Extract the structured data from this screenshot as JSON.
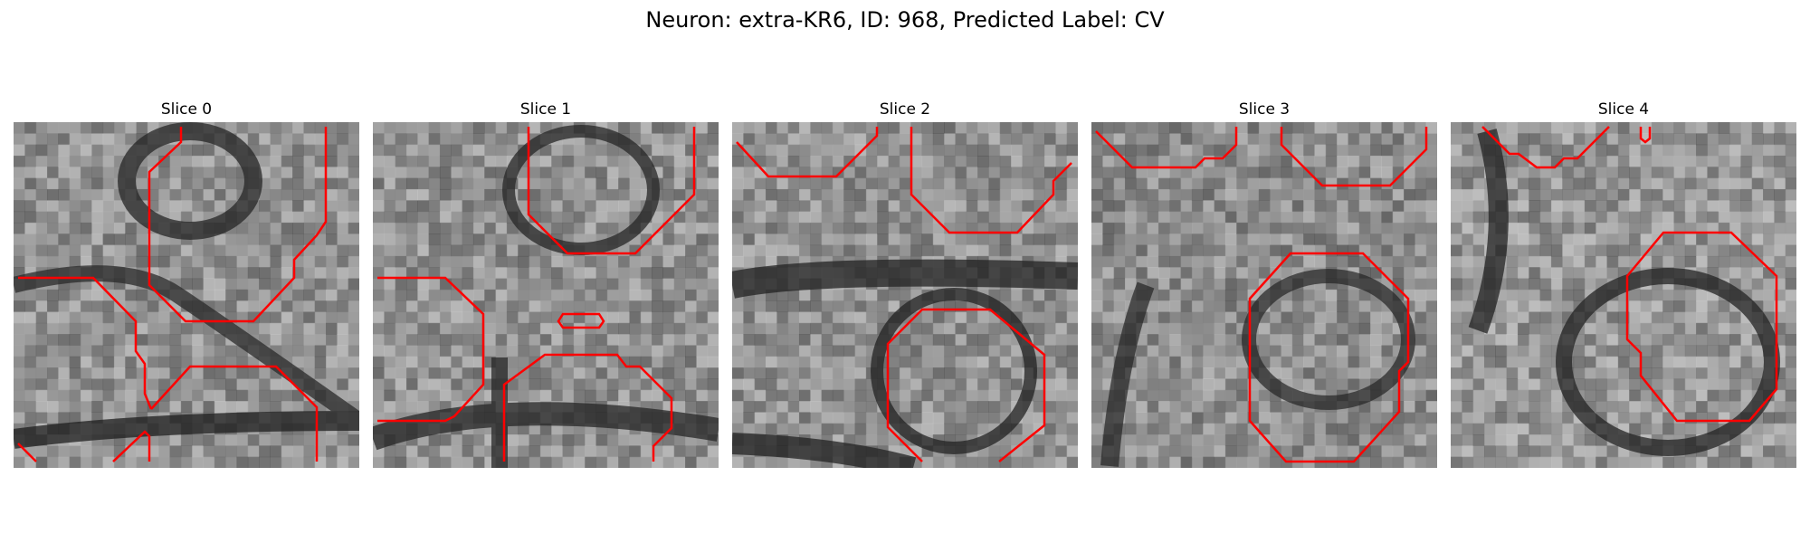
{
  "figure": {
    "title": "Neuron: extra-KR6, ID: 968, Predicted Label: CV"
  },
  "slices": [
    {
      "title": "Slice 0"
    },
    {
      "title": "Slice 1"
    },
    {
      "title": "Slice 2"
    },
    {
      "title": "Slice 3"
    },
    {
      "title": "Slice 4"
    }
  ],
  "colors": {
    "contour": "#ff0000",
    "background": "#ffffff"
  }
}
